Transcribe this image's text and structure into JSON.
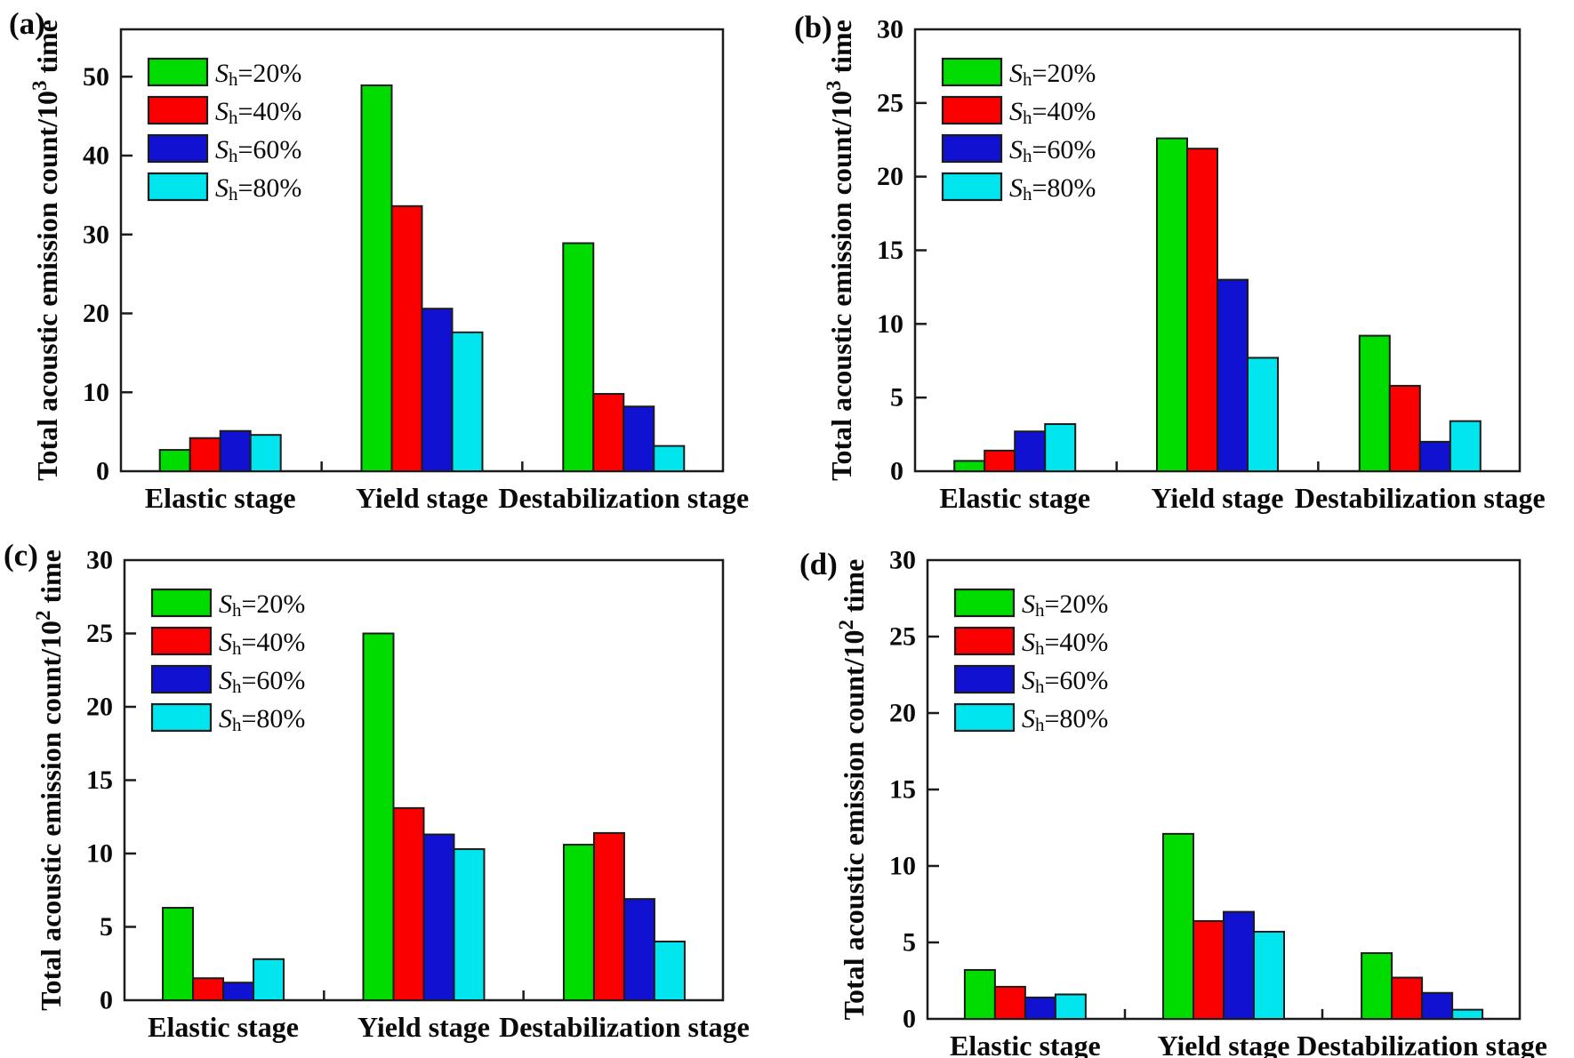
{
  "figure": {
    "background": "#ffffff",
    "axis_color": "#1c1c1c",
    "bar_border_color": "#1c1c1c",
    "series_colors": [
      "#00dc00",
      "#fa0000",
      "#1111d1",
      "#00e5ee"
    ]
  },
  "legend": {
    "items": [
      {
        "sym": "S",
        "sub": "h",
        "rest": "=20%"
      },
      {
        "sym": "S",
        "sub": "h",
        "rest": "=40%"
      },
      {
        "sym": "S",
        "sub": "h",
        "rest": "=60%"
      },
      {
        "sym": "S",
        "sub": "h",
        "rest": "=80%"
      }
    ]
  },
  "chart_data": [
    {
      "type": "bar",
      "panel_label": "(a)",
      "ylabel_base": "Total acoustic emission count/10",
      "ylabel_exp": "3",
      "ylabel_unit": " time",
      "ylim": [
        0,
        56
      ],
      "yticks": [
        0,
        10,
        20,
        30,
        40,
        50
      ],
      "categories": [
        "Elastic stage",
        "Yield stage",
        "Destabilization stage"
      ],
      "legend_position": "top-left-inside",
      "grid": false,
      "series": [
        {
          "name": "Sh=20%",
          "values": [
            2.7,
            48.9,
            28.9
          ]
        },
        {
          "name": "Sh=40%",
          "values": [
            4.2,
            33.6,
            9.8
          ]
        },
        {
          "name": "Sh=60%",
          "values": [
            5.1,
            20.6,
            8.2
          ]
        },
        {
          "name": "Sh=80%",
          "values": [
            4.6,
            17.6,
            3.2
          ]
        }
      ]
    },
    {
      "type": "bar",
      "panel_label": "(b)",
      "ylabel_base": "Total acoustic emission count/10",
      "ylabel_exp": "3",
      "ylabel_unit": " time",
      "ylim": [
        0,
        30
      ],
      "yticks": [
        0,
        5,
        10,
        15,
        20,
        25,
        30
      ],
      "categories": [
        "Elastic stage",
        "Yield stage",
        "Destabilization stage"
      ],
      "legend_position": "top-left-inside",
      "grid": false,
      "series": [
        {
          "name": "Sh=20%",
          "values": [
            0.7,
            22.6,
            9.2
          ]
        },
        {
          "name": "Sh=40%",
          "values": [
            1.4,
            21.9,
            5.8
          ]
        },
        {
          "name": "Sh=60%",
          "values": [
            2.7,
            13.0,
            2.0
          ]
        },
        {
          "name": "Sh=80%",
          "values": [
            3.2,
            7.7,
            3.4
          ]
        }
      ]
    },
    {
      "type": "bar",
      "panel_label": "(c)",
      "ylabel_base": "Total acoustic emission count/10",
      "ylabel_exp": "2",
      "ylabel_unit": " time",
      "ylim": [
        0,
        30
      ],
      "yticks": [
        0,
        5,
        10,
        15,
        20,
        25,
        30
      ],
      "categories": [
        "Elastic stage",
        "Yield stage",
        "Destabilization stage"
      ],
      "legend_position": "top-left-inside",
      "grid": false,
      "series": [
        {
          "name": "Sh=20%",
          "values": [
            6.3,
            25.0,
            10.6
          ]
        },
        {
          "name": "Sh=40%",
          "values": [
            1.5,
            13.1,
            11.4
          ]
        },
        {
          "name": "Sh=60%",
          "values": [
            1.2,
            11.3,
            6.9
          ]
        },
        {
          "name": "Sh=80%",
          "values": [
            2.8,
            10.3,
            4.0
          ]
        }
      ]
    },
    {
      "type": "bar",
      "panel_label": "(d)",
      "ylabel_base": "Total acoustic emission count/10",
      "ylabel_exp": "2",
      "ylabel_unit": " time",
      "ylim": [
        0,
        30
      ],
      "yticks": [
        0,
        5,
        10,
        15,
        20,
        25,
        30
      ],
      "categories": [
        "Elastic stage",
        "Yield stage",
        "Destabilization stage"
      ],
      "legend_position": "top-left-inside",
      "grid": false,
      "series": [
        {
          "name": "Sh=20%",
          "values": [
            3.2,
            12.1,
            4.3
          ]
        },
        {
          "name": "Sh=40%",
          "values": [
            2.1,
            6.4,
            2.7
          ]
        },
        {
          "name": "Sh=60%",
          "values": [
            1.4,
            7.0,
            1.7
          ]
        },
        {
          "name": "Sh=80%",
          "values": [
            1.6,
            5.7,
            0.6
          ]
        }
      ]
    }
  ]
}
